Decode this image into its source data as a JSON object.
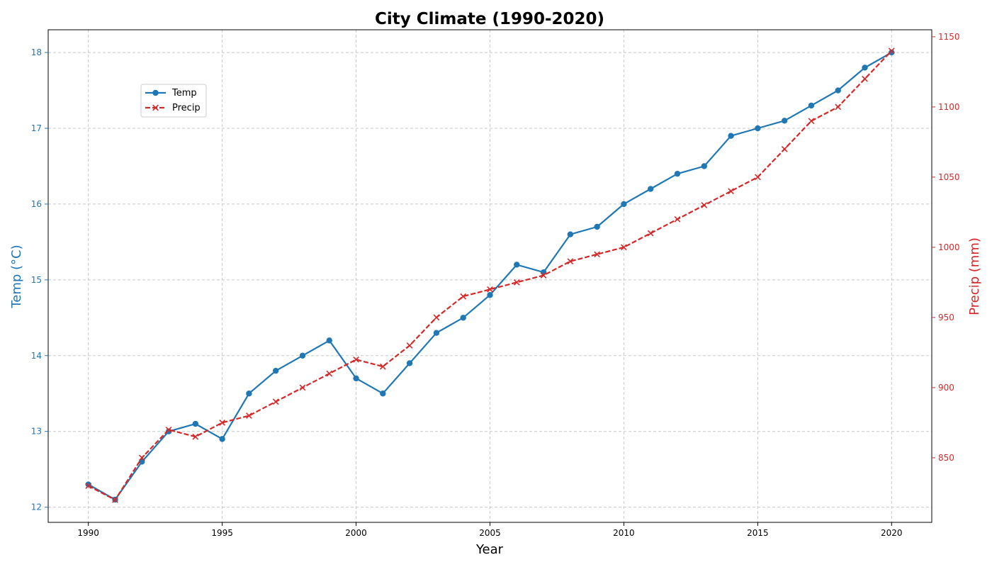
{
  "colors": {
    "temp": "#1f77b4",
    "precip": "#d62728",
    "grid": "#c8c8c8",
    "axis": "#000000"
  },
  "chart_data": {
    "type": "line",
    "title": "City Climate (1990-2020)",
    "xlabel": "Year",
    "ylabel_left": "Temp (°C)",
    "ylabel_right": "Precip (mm)",
    "xlim": [
      1988.5,
      2021.5
    ],
    "ylim_left": [
      11.8,
      18.3
    ],
    "ylim_right": [
      804,
      1155
    ],
    "x_ticks": [
      1990,
      1995,
      2000,
      2005,
      2010,
      2015,
      2020
    ],
    "y_ticks_left": [
      12,
      13,
      14,
      15,
      16,
      17,
      18
    ],
    "y_ticks_right": [
      850,
      900,
      950,
      1000,
      1050,
      1100,
      1150
    ],
    "grid": true,
    "legend_position": "upper-left",
    "x": [
      1990,
      1991,
      1992,
      1993,
      1994,
      1995,
      1996,
      1997,
      1998,
      1999,
      2000,
      2001,
      2002,
      2003,
      2004,
      2005,
      2006,
      2007,
      2008,
      2009,
      2010,
      2011,
      2012,
      2013,
      2014,
      2015,
      2016,
      2017,
      2018,
      2019,
      2020
    ],
    "series": [
      {
        "name": "Temp",
        "axis": "left",
        "marker": "circle",
        "line_style": "solid",
        "values": [
          12.3,
          12.1,
          12.6,
          13.0,
          13.1,
          12.9,
          13.5,
          13.8,
          14.0,
          14.2,
          13.7,
          13.5,
          13.9,
          14.3,
          14.5,
          14.8,
          15.2,
          15.1,
          15.6,
          15.7,
          16.0,
          16.2,
          16.4,
          16.5,
          16.9,
          17.0,
          17.1,
          17.3,
          17.5,
          17.8,
          18.0
        ]
      },
      {
        "name": "Precip",
        "axis": "right",
        "marker": "x",
        "line_style": "dashed",
        "values": [
          830,
          820,
          850,
          870,
          865,
          875,
          880,
          890,
          900,
          910,
          920,
          915,
          930,
          950,
          965,
          970,
          975,
          980,
          990,
          995,
          1000,
          1010,
          1020,
          1030,
          1040,
          1050,
          1070,
          1090,
          1100,
          1120,
          1140
        ]
      }
    ]
  }
}
